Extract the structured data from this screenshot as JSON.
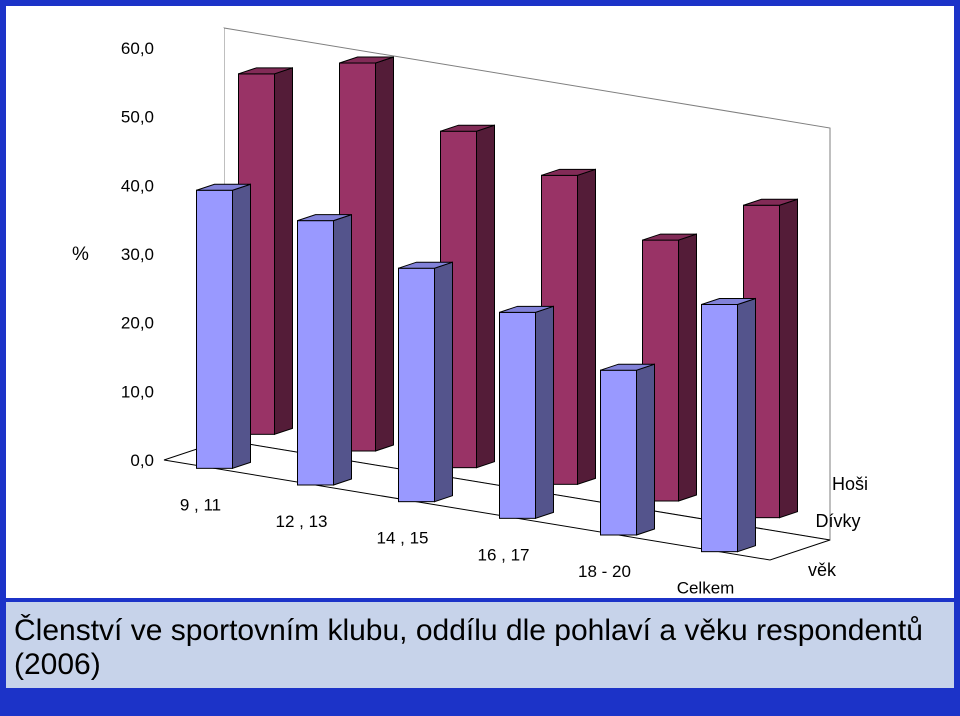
{
  "colors": {
    "frame": "#1c33c8",
    "caption_band": "#c7d3ea",
    "series_back": "#993366",
    "series_front": "#9999ff"
  },
  "caption": "Členství ve sportovním klubu, oddílu dle pohlaví a věku respondentů (2006)",
  "chart_data": {
    "type": "bar",
    "variant": "3d-columns",
    "ylabel": "%",
    "xlabel": "věk",
    "ylim": [
      0,
      60
    ],
    "yticks": [
      "0,0",
      "10,0",
      "20,0",
      "30,0",
      "40,0",
      "50,0",
      "60,0"
    ],
    "categories": [
      "9 , 11",
      "12 , 13",
      "14 , 15",
      "16 , 17",
      "18 - 20",
      "Celkem"
    ],
    "series": [
      {
        "name": "Hoši",
        "values": [
          52.5,
          56.5,
          49.0,
          45.0,
          38.0,
          45.5
        ]
      },
      {
        "name": "Dívky",
        "values": [
          40.5,
          38.5,
          34.0,
          30.0,
          24.0,
          36.0
        ]
      }
    ],
    "grid": false
  }
}
